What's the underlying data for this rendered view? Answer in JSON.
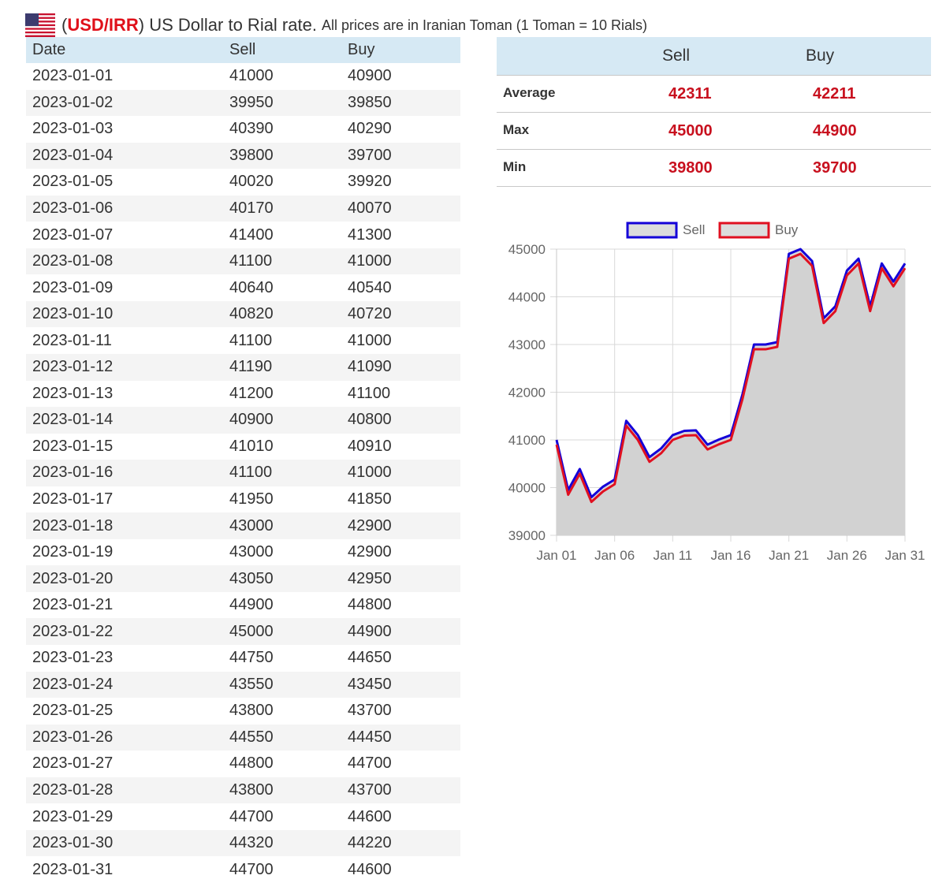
{
  "header": {
    "open_paren": "(",
    "code": "USD/IRR",
    "title": ") US Dollar to Rial rate.",
    "note": "All prices are in Iranian Toman (1 Toman = 10 Rials)"
  },
  "colors": {
    "accent_red": "#c8101e",
    "header_bg": "#d6e9f4",
    "sell_line": "#1400d8",
    "buy_line": "#e01020",
    "area_fill": "#d1d1d1"
  },
  "table": {
    "headers": [
      "Date",
      "Sell",
      "Buy"
    ],
    "rows": [
      [
        "2023-01-01",
        "41000",
        "40900"
      ],
      [
        "2023-01-02",
        "39950",
        "39850"
      ],
      [
        "2023-01-03",
        "40390",
        "40290"
      ],
      [
        "2023-01-04",
        "39800",
        "39700"
      ],
      [
        "2023-01-05",
        "40020",
        "39920"
      ],
      [
        "2023-01-06",
        "40170",
        "40070"
      ],
      [
        "2023-01-07",
        "41400",
        "41300"
      ],
      [
        "2023-01-08",
        "41100",
        "41000"
      ],
      [
        "2023-01-09",
        "40640",
        "40540"
      ],
      [
        "2023-01-10",
        "40820",
        "40720"
      ],
      [
        "2023-01-11",
        "41100",
        "41000"
      ],
      [
        "2023-01-12",
        "41190",
        "41090"
      ],
      [
        "2023-01-13",
        "41200",
        "41100"
      ],
      [
        "2023-01-14",
        "40900",
        "40800"
      ],
      [
        "2023-01-15",
        "41010",
        "40910"
      ],
      [
        "2023-01-16",
        "41100",
        "41000"
      ],
      [
        "2023-01-17",
        "41950",
        "41850"
      ],
      [
        "2023-01-18",
        "43000",
        "42900"
      ],
      [
        "2023-01-19",
        "43000",
        "42900"
      ],
      [
        "2023-01-20",
        "43050",
        "42950"
      ],
      [
        "2023-01-21",
        "44900",
        "44800"
      ],
      [
        "2023-01-22",
        "45000",
        "44900"
      ],
      [
        "2023-01-23",
        "44750",
        "44650"
      ],
      [
        "2023-01-24",
        "43550",
        "43450"
      ],
      [
        "2023-01-25",
        "43800",
        "43700"
      ],
      [
        "2023-01-26",
        "44550",
        "44450"
      ],
      [
        "2023-01-27",
        "44800",
        "44700"
      ],
      [
        "2023-01-28",
        "43800",
        "43700"
      ],
      [
        "2023-01-29",
        "44700",
        "44600"
      ],
      [
        "2023-01-30",
        "44320",
        "44220"
      ],
      [
        "2023-01-31",
        "44700",
        "44600"
      ]
    ]
  },
  "stats": {
    "headers": {
      "sell": "Sell",
      "buy": "Buy"
    },
    "rows": [
      {
        "label": "Average",
        "sell": "42311",
        "buy": "42211"
      },
      {
        "label": "Max",
        "sell": "45000",
        "buy": "44900"
      },
      {
        "label": "Min",
        "sell": "39800",
        "buy": "39700"
      }
    ]
  },
  "chart_data": {
    "type": "line",
    "title": "",
    "xlabel": "",
    "ylabel": "",
    "x": [
      "2023-01-01",
      "2023-01-02",
      "2023-01-03",
      "2023-01-04",
      "2023-01-05",
      "2023-01-06",
      "2023-01-07",
      "2023-01-08",
      "2023-01-09",
      "2023-01-10",
      "2023-01-11",
      "2023-01-12",
      "2023-01-13",
      "2023-01-14",
      "2023-01-15",
      "2023-01-16",
      "2023-01-17",
      "2023-01-18",
      "2023-01-19",
      "2023-01-20",
      "2023-01-21",
      "2023-01-22",
      "2023-01-23",
      "2023-01-24",
      "2023-01-25",
      "2023-01-26",
      "2023-01-27",
      "2023-01-28",
      "2023-01-29",
      "2023-01-30",
      "2023-01-31"
    ],
    "x_tick_labels": [
      "Jan 01",
      "Jan 06",
      "Jan 11",
      "Jan 16",
      "Jan 21",
      "Jan 26",
      "Jan 31"
    ],
    "y_ticks": [
      39000,
      40000,
      41000,
      42000,
      43000,
      44000,
      45000
    ],
    "ylim": [
      39000,
      45000
    ],
    "grid": true,
    "legend_position": "top-center",
    "area_filled": true,
    "series": [
      {
        "name": "Sell",
        "color": "#1400d8",
        "values": [
          41000,
          39950,
          40390,
          39800,
          40020,
          40170,
          41400,
          41100,
          40640,
          40820,
          41100,
          41190,
          41200,
          40900,
          41010,
          41100,
          41950,
          43000,
          43000,
          43050,
          44900,
          45000,
          44750,
          43550,
          43800,
          44550,
          44800,
          43800,
          44700,
          44320,
          44700
        ]
      },
      {
        "name": "Buy",
        "color": "#e01020",
        "values": [
          40900,
          39850,
          40290,
          39700,
          39920,
          40070,
          41300,
          41000,
          40540,
          40720,
          41000,
          41090,
          41100,
          40800,
          40910,
          41000,
          41850,
          42900,
          42900,
          42950,
          44800,
          44900,
          44650,
          43450,
          43700,
          44450,
          44700,
          43700,
          44600,
          44220,
          44600
        ]
      }
    ]
  }
}
